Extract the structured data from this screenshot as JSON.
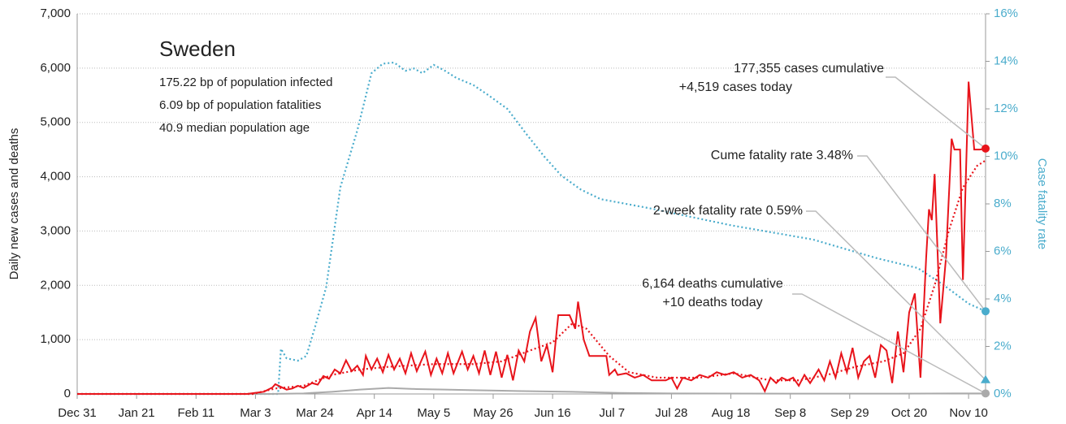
{
  "chart_data": {
    "type": "line",
    "country": "Sweden",
    "stats": [
      "175.22 bp of population infected",
      "6.09 bp of population fatalities",
      "40.9 median population age"
    ],
    "ylabel": "Daily new cases and deaths",
    "y2label": "Case fatality rate",
    "xlim": [
      0,
      321
    ],
    "xticks": [
      {
        "value": 0,
        "label": "Dec 31"
      },
      {
        "value": 21,
        "label": "Jan 21"
      },
      {
        "value": 42,
        "label": "Feb 11"
      },
      {
        "value": 63,
        "label": "Mar 3"
      },
      {
        "value": 84,
        "label": "Mar 24"
      },
      {
        "value": 105,
        "label": "Apr 14"
      },
      {
        "value": 126,
        "label": "May 5"
      },
      {
        "value": 147,
        "label": "May 26"
      },
      {
        "value": 168,
        "label": "Jun 16"
      },
      {
        "value": 189,
        "label": "Jul 7"
      },
      {
        "value": 210,
        "label": "Jul 28"
      },
      {
        "value": 231,
        "label": "Aug 18"
      },
      {
        "value": 252,
        "label": "Sep 8"
      },
      {
        "value": 273,
        "label": "Sep 29"
      },
      {
        "value": 294,
        "label": "Oct 20"
      },
      {
        "value": 315,
        "label": "Nov 10"
      }
    ],
    "ylim": [
      0,
      7000
    ],
    "yticks": [
      0,
      {
        "value": 1000,
        "label": "1,000"
      },
      {
        "value": 2000,
        "label": "2,000"
      },
      {
        "value": 3000,
        "label": "3,000"
      },
      {
        "value": 4000,
        "label": "4,000"
      },
      {
        "value": 5000,
        "label": "5,000"
      },
      {
        "value": 6000,
        "label": "6,000"
      },
      {
        "value": 7000,
        "label": "7,000"
      }
    ],
    "y2lim": [
      0,
      16
    ],
    "y2ticks": [
      {
        "value": 0,
        "label": "0%"
      },
      {
        "value": 2,
        "label": "2%"
      },
      {
        "value": 4,
        "label": "4%"
      },
      {
        "value": 6,
        "label": "6%"
      },
      {
        "value": 8,
        "label": "8%"
      },
      {
        "value": 10,
        "label": "10%"
      },
      {
        "value": 12,
        "label": "12%"
      },
      {
        "value": 14,
        "label": "14%"
      },
      {
        "value": 16,
        "label": "16%"
      }
    ],
    "grid": true,
    "series": [
      {
        "color": "#4aaccc",
        "style": "dotted",
        "axis": "y2",
        "x": [
          0,
          71,
          72,
          74,
          78,
          81,
          84,
          88,
          93,
          99,
          104,
          108,
          112,
          116,
          119,
          122,
          126,
          130,
          134,
          140,
          145,
          152,
          159,
          165,
          171,
          178,
          185,
          203,
          231,
          260,
          283,
          297,
          306,
          315,
          321
        ],
        "values": [
          0,
          0,
          1.9,
          1.5,
          1.4,
          1.6,
          2.8,
          4.5,
          8.7,
          11.1,
          13.5,
          13.9,
          13.95,
          13.6,
          13.7,
          13.5,
          13.85,
          13.6,
          13.3,
          13.0,
          12.6,
          12.0,
          10.9,
          10.0,
          9.2,
          8.6,
          8.2,
          7.8,
          7.1,
          6.5,
          5.7,
          5.3,
          4.6,
          3.8,
          3.48
        ]
      },
      {
        "color": "#aaaaaa",
        "style": "solid",
        "axis": "y",
        "x": [
          0,
          68,
          80,
          90,
          100,
          110,
          120,
          130,
          140,
          150,
          160,
          175,
          190,
          210,
          250,
          290,
          310,
          321
        ],
        "values": [
          0,
          0,
          10,
          40,
          80,
          110,
          90,
          80,
          70,
          60,
          50,
          40,
          20,
          10,
          5,
          5,
          10,
          10
        ]
      },
      {
        "color": "#e8141b",
        "style": "dotted",
        "axis": "y",
        "x": [
          0,
          62,
          70,
          80,
          90,
          100,
          110,
          126,
          140,
          150,
          160,
          168,
          175,
          180,
          188,
          195,
          205,
          220,
          232,
          245,
          255,
          265,
          275,
          285,
          292,
          298,
          303,
          308,
          313,
          318,
          321
        ],
        "values": [
          0,
          0,
          100,
          150,
          350,
          450,
          500,
          550,
          550,
          600,
          800,
          950,
          1300,
          1200,
          700,
          400,
          300,
          300,
          380,
          250,
          250,
          350,
          500,
          600,
          750,
          1200,
          2000,
          3000,
          3800,
          4200,
          4300
        ]
      },
      {
        "color": "#e8141b",
        "style": "solid",
        "axis": "y",
        "x": [
          0,
          60,
          63,
          66,
          69,
          70,
          72,
          74,
          76,
          78,
          80,
          83,
          85,
          87,
          89,
          91,
          93,
          95,
          97,
          99,
          101,
          102,
          104,
          106,
          108,
          110,
          112,
          114,
          116,
          118,
          120,
          123,
          125,
          127,
          129,
          131,
          133,
          136,
          138,
          140,
          142,
          144,
          146,
          148,
          150,
          152,
          154,
          156,
          158,
          160,
          162,
          164,
          166,
          168,
          170,
          174,
          176,
          177,
          179,
          181,
          187,
          188,
          190,
          191,
          194,
          197,
          200,
          203,
          208,
          210,
          212,
          214,
          217,
          220,
          223,
          226,
          229,
          232,
          235,
          238,
          241,
          243,
          245,
          247,
          249,
          251,
          253,
          255,
          257,
          259,
          262,
          264,
          266,
          268,
          270,
          272,
          274,
          276,
          278,
          280,
          282,
          284,
          286,
          288,
          290,
          292,
          294,
          296,
          298,
          300,
          301,
          302,
          303,
          305,
          307,
          309,
          310,
          312,
          313,
          315,
          317,
          319,
          321
        ],
        "values": [
          0,
          0,
          20,
          40,
          120,
          180,
          130,
          80,
          100,
          150,
          110,
          200,
          170,
          330,
          280,
          450,
          380,
          620,
          420,
          520,
          350,
          700,
          450,
          650,
          400,
          720,
          450,
          650,
          380,
          750,
          420,
          780,
          350,
          650,
          380,
          750,
          380,
          780,
          450,
          700,
          380,
          800,
          350,
          780,
          300,
          720,
          250,
          800,
          600,
          1150,
          1400,
          600,
          900,
          400,
          1450,
          1450,
          1200,
          1700,
          1000,
          700,
          700,
          350,
          450,
          350,
          380,
          300,
          350,
          250,
          250,
          300,
          100,
          300,
          250,
          350,
          300,
          400,
          350,
          400,
          300,
          350,
          250,
          50,
          300,
          200,
          300,
          250,
          300,
          150,
          350,
          200,
          450,
          250,
          600,
          300,
          750,
          400,
          850,
          300,
          600,
          700,
          300,
          900,
          800,
          200,
          1150,
          400,
          1500,
          1850,
          300,
          2500,
          3400,
          3200,
          4050,
          1300,
          2500,
          4700,
          4500,
          4500,
          2100,
          5750,
          4500,
          4500,
          4519
        ]
      }
    ],
    "two_week_fatality_rate": 0.59,
    "annotations": [
      {
        "lines": [
          "177,355 cases cumulative",
          "+4,519 cases today"
        ]
      },
      {
        "lines": [
          "Cume fatality rate 3.48%"
        ]
      },
      {
        "lines": [
          "2-week fatality rate 0.59%"
        ]
      },
      {
        "lines": [
          "6,164 deaths cumulative",
          "+10 deaths today"
        ]
      }
    ]
  }
}
